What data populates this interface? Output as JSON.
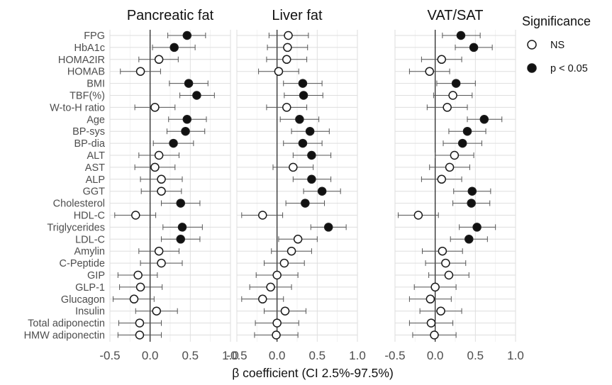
{
  "chart_data": {
    "type": "scatter",
    "subtype": "forest-plot",
    "xlabel": "β coefficient (CI 2.5%-97.5%)",
    "xlim": [
      -0.5,
      1.0
    ],
    "xticks": [
      "-0.5",
      "0.0",
      "0.5",
      "1.0"
    ],
    "reference_line": 0,
    "grid": true,
    "legend": {
      "title": "Significance",
      "position": "right",
      "entries": [
        {
          "label": "NS",
          "marker": "open-circle"
        },
        {
          "label": "p < 0.05",
          "marker": "filled-circle"
        }
      ]
    },
    "rows": [
      "FPG",
      "HbA1c",
      "HOMA2IR",
      "HOMAB",
      "BMI",
      "TBF(%)",
      "W-to-H ratio",
      "Age",
      "BP-sys",
      "BP-dia",
      "ALT",
      "AST",
      "ALP",
      "GGT",
      "Cholesterol",
      "HDL-C",
      "Triglycerides",
      "LDL-C",
      "Amylin",
      "C-Peptide",
      "GIP",
      "GLP-1",
      "Glucagon",
      "Insulin",
      "Total adiponectin",
      "HMW adiponectin"
    ],
    "panels": [
      {
        "title": "Pancreatic fat",
        "points": [
          {
            "est": 0.46,
            "lo": 0.22,
            "hi": 0.69,
            "sig": true
          },
          {
            "est": 0.3,
            "lo": 0.03,
            "hi": 0.56,
            "sig": true
          },
          {
            "est": 0.11,
            "lo": -0.14,
            "hi": 0.35,
            "sig": false
          },
          {
            "est": -0.12,
            "lo": -0.37,
            "hi": 0.13,
            "sig": false
          },
          {
            "est": 0.48,
            "lo": 0.24,
            "hi": 0.72,
            "sig": true
          },
          {
            "est": 0.58,
            "lo": 0.37,
            "hi": 0.8,
            "sig": true
          },
          {
            "est": 0.06,
            "lo": -0.19,
            "hi": 0.31,
            "sig": false
          },
          {
            "est": 0.46,
            "lo": 0.23,
            "hi": 0.7,
            "sig": true
          },
          {
            "est": 0.44,
            "lo": 0.21,
            "hi": 0.68,
            "sig": true
          },
          {
            "est": 0.29,
            "lo": 0.04,
            "hi": 0.54,
            "sig": true
          },
          {
            "est": 0.11,
            "lo": -0.14,
            "hi": 0.36,
            "sig": false
          },
          {
            "est": 0.06,
            "lo": -0.19,
            "hi": 0.31,
            "sig": false
          },
          {
            "est": 0.14,
            "lo": -0.12,
            "hi": 0.4,
            "sig": false
          },
          {
            "est": 0.14,
            "lo": -0.11,
            "hi": 0.39,
            "sig": false
          },
          {
            "est": 0.38,
            "lo": 0.14,
            "hi": 0.62,
            "sig": true
          },
          {
            "est": -0.18,
            "lo": -0.44,
            "hi": 0.07,
            "sig": false
          },
          {
            "est": 0.4,
            "lo": 0.16,
            "hi": 0.65,
            "sig": true
          },
          {
            "est": 0.38,
            "lo": 0.14,
            "hi": 0.62,
            "sig": true
          },
          {
            "est": 0.11,
            "lo": -0.14,
            "hi": 0.36,
            "sig": false
          },
          {
            "est": 0.14,
            "lo": -0.12,
            "hi": 0.4,
            "sig": false
          },
          {
            "est": -0.15,
            "lo": -0.4,
            "hi": 0.09,
            "sig": false
          },
          {
            "est": -0.12,
            "lo": -0.38,
            "hi": 0.15,
            "sig": false
          },
          {
            "est": -0.2,
            "lo": -0.46,
            "hi": 0.05,
            "sig": false
          },
          {
            "est": 0.08,
            "lo": -0.18,
            "hi": 0.34,
            "sig": false
          },
          {
            "est": -0.13,
            "lo": -0.39,
            "hi": 0.14,
            "sig": false
          },
          {
            "est": -0.13,
            "lo": -0.4,
            "hi": 0.14,
            "sig": false
          }
        ]
      },
      {
        "title": "Liver fat",
        "points": [
          {
            "est": 0.14,
            "lo": -0.1,
            "hi": 0.39,
            "sig": false
          },
          {
            "est": 0.13,
            "lo": -0.12,
            "hi": 0.38,
            "sig": false
          },
          {
            "est": 0.12,
            "lo": -0.13,
            "hi": 0.37,
            "sig": false
          },
          {
            "est": 0.02,
            "lo": -0.23,
            "hi": 0.27,
            "sig": false
          },
          {
            "est": 0.32,
            "lo": 0.08,
            "hi": 0.56,
            "sig": true
          },
          {
            "est": 0.33,
            "lo": 0.09,
            "hi": 0.57,
            "sig": true
          },
          {
            "est": 0.12,
            "lo": -0.13,
            "hi": 0.37,
            "sig": false
          },
          {
            "est": 0.28,
            "lo": 0.04,
            "hi": 0.52,
            "sig": true
          },
          {
            "est": 0.41,
            "lo": 0.18,
            "hi": 0.65,
            "sig": true
          },
          {
            "est": 0.32,
            "lo": 0.08,
            "hi": 0.56,
            "sig": true
          },
          {
            "est": 0.43,
            "lo": 0.2,
            "hi": 0.67,
            "sig": true
          },
          {
            "est": 0.2,
            "lo": -0.05,
            "hi": 0.45,
            "sig": false
          },
          {
            "est": 0.43,
            "lo": 0.2,
            "hi": 0.67,
            "sig": true
          },
          {
            "est": 0.56,
            "lo": 0.33,
            "hi": 0.79,
            "sig": true
          },
          {
            "est": 0.35,
            "lo": 0.11,
            "hi": 0.59,
            "sig": true
          },
          {
            "est": -0.18,
            "lo": -0.44,
            "hi": 0.07,
            "sig": false
          },
          {
            "est": 0.64,
            "lo": 0.42,
            "hi": 0.86,
            "sig": true
          },
          {
            "est": 0.26,
            "lo": 0.02,
            "hi": 0.5,
            "sig": false
          },
          {
            "est": 0.18,
            "lo": -0.07,
            "hi": 0.43,
            "sig": false
          },
          {
            "est": 0.09,
            "lo": -0.16,
            "hi": 0.34,
            "sig": false
          },
          {
            "est": 0.0,
            "lo": -0.26,
            "hi": 0.26,
            "sig": false
          },
          {
            "est": -0.08,
            "lo": -0.34,
            "hi": 0.18,
            "sig": false
          },
          {
            "est": -0.18,
            "lo": -0.44,
            "hi": 0.08,
            "sig": false
          },
          {
            "est": 0.1,
            "lo": -0.16,
            "hi": 0.36,
            "sig": false
          },
          {
            "est": 0.0,
            "lo": -0.27,
            "hi": 0.27,
            "sig": false
          },
          {
            "est": -0.01,
            "lo": -0.28,
            "hi": 0.26,
            "sig": false
          }
        ]
      },
      {
        "title": "VAT/SAT",
        "points": [
          {
            "est": 0.32,
            "lo": 0.09,
            "hi": 0.56,
            "sig": true
          },
          {
            "est": 0.48,
            "lo": 0.25,
            "hi": 0.71,
            "sig": true
          },
          {
            "est": 0.08,
            "lo": -0.17,
            "hi": 0.33,
            "sig": false
          },
          {
            "est": -0.07,
            "lo": -0.32,
            "hi": 0.18,
            "sig": false
          },
          {
            "est": 0.26,
            "lo": 0.02,
            "hi": 0.5,
            "sig": true
          },
          {
            "est": 0.22,
            "lo": -0.02,
            "hi": 0.46,
            "sig": false
          },
          {
            "est": 0.15,
            "lo": -0.1,
            "hi": 0.4,
            "sig": false
          },
          {
            "est": 0.61,
            "lo": 0.4,
            "hi": 0.83,
            "sig": true
          },
          {
            "est": 0.4,
            "lo": 0.17,
            "hi": 0.63,
            "sig": true
          },
          {
            "est": 0.34,
            "lo": 0.1,
            "hi": 0.58,
            "sig": true
          },
          {
            "est": 0.24,
            "lo": 0.0,
            "hi": 0.48,
            "sig": false
          },
          {
            "est": 0.18,
            "lo": -0.07,
            "hi": 0.43,
            "sig": false
          },
          {
            "est": 0.08,
            "lo": -0.17,
            "hi": 0.33,
            "sig": false
          },
          {
            "est": 0.46,
            "lo": 0.23,
            "hi": 0.69,
            "sig": true
          },
          {
            "est": 0.45,
            "lo": 0.22,
            "hi": 0.68,
            "sig": true
          },
          {
            "est": -0.21,
            "lo": -0.46,
            "hi": 0.04,
            "sig": false
          },
          {
            "est": 0.52,
            "lo": 0.3,
            "hi": 0.75,
            "sig": true
          },
          {
            "est": 0.42,
            "lo": 0.19,
            "hi": 0.65,
            "sig": true
          },
          {
            "est": 0.09,
            "lo": -0.16,
            "hi": 0.34,
            "sig": false
          },
          {
            "est": 0.13,
            "lo": -0.12,
            "hi": 0.38,
            "sig": false
          },
          {
            "est": 0.17,
            "lo": -0.08,
            "hi": 0.42,
            "sig": false
          },
          {
            "est": 0.0,
            "lo": -0.26,
            "hi": 0.26,
            "sig": false
          },
          {
            "est": -0.06,
            "lo": -0.32,
            "hi": 0.2,
            "sig": false
          },
          {
            "est": 0.07,
            "lo": -0.19,
            "hi": 0.33,
            "sig": false
          },
          {
            "est": -0.05,
            "lo": -0.32,
            "hi": 0.22,
            "sig": false
          },
          {
            "est": -0.01,
            "lo": -0.28,
            "hi": 0.26,
            "sig": false
          }
        ]
      }
    ]
  },
  "colors": {
    "grid": "#dedede",
    "zero_line": "#1a1a1a",
    "whisker": "#555555",
    "marker_edge": "#1a1a1a",
    "sig_fill": "#111111",
    "ns_fill": "#ffffff"
  }
}
